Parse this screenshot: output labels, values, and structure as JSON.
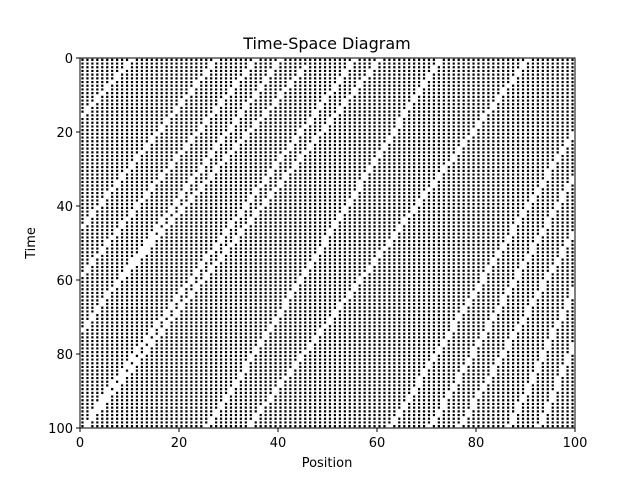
{
  "chart_data": {
    "type": "heatmap",
    "title": "Time-Space Diagram",
    "xlabel": "Position",
    "ylabel": "Time",
    "xlim": [
      0,
      100
    ],
    "ylim": [
      100,
      0
    ],
    "xticks": [
      "0",
      "20",
      "40",
      "60",
      "80",
      "100"
    ],
    "yticks": [
      "0",
      "20",
      "40",
      "60",
      "80",
      "100"
    ],
    "grid": false,
    "colors": {
      "empty_cell": "#000000",
      "background": "#ffffff"
    },
    "trajectories": [
      {
        "x0": 10,
        "t0": 0,
        "x1": 0,
        "t1": 15
      },
      {
        "x0": 27,
        "t0": 0,
        "x1": 0,
        "t1": 45
      },
      {
        "x0": 35,
        "t0": 0,
        "x1": 0,
        "t1": 58
      },
      {
        "x0": 40,
        "t0": 0,
        "x1": 0,
        "t1": 73
      },
      {
        "x0": 45,
        "t0": 2,
        "x1": 6,
        "t1": 62
      },
      {
        "x0": 55,
        "t0": 0,
        "x1": 2,
        "t1": 95
      },
      {
        "x0": 60,
        "t0": 0,
        "x1": 0,
        "t1": 100
      },
      {
        "x0": 72,
        "t0": 0,
        "x1": 25,
        "t1": 100
      },
      {
        "x0": 90,
        "t0": 0,
        "x1": 33,
        "t1": 100
      },
      {
        "x0": 100,
        "t0": 18,
        "x1": 62,
        "t1": 100
      },
      {
        "x0": 100,
        "t0": 30,
        "x1": 70,
        "t1": 100
      },
      {
        "x0": 100,
        "t0": 45,
        "x1": 76,
        "t1": 100
      },
      {
        "x0": 100,
        "t0": 60,
        "x1": 86,
        "t1": 100
      },
      {
        "x0": 100,
        "t0": 75,
        "x1": 92,
        "t1": 100
      }
    ]
  }
}
